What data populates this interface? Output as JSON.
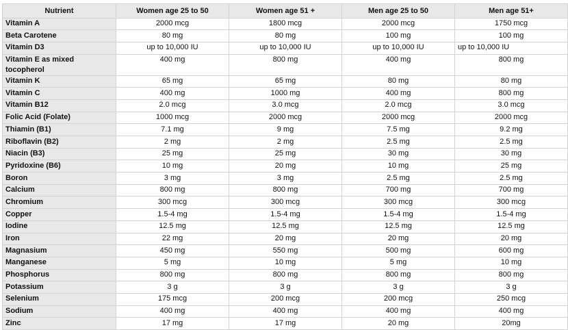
{
  "colors": {
    "header_bg": "#e8e8e8",
    "row_label_bg": "#e8e8e8",
    "border": "#d2d2d2",
    "text": "#111111"
  },
  "table": {
    "columns": [
      "Nutrient",
      "Women age 25 to 50",
      "Women age 51 +",
      "Men age 25 to 50",
      "Men age 51+"
    ],
    "rows": [
      {
        "nutrient": "Vitamin A",
        "values": [
          "2000 mcg",
          "1800 mcg",
          "2000 mcg",
          "1750 mcg"
        ]
      },
      {
        "nutrient": "Beta Carotene",
        "values": [
          "80 mg",
          "80 mg",
          "100 mg",
          "100 mg"
        ]
      },
      {
        "nutrient": "Vitamin D3",
        "values": [
          "up to 10,000 IU",
          "up to 10,000 IU",
          "up to 10,000 IU",
          "up to 10,000 IU"
        ]
      },
      {
        "nutrient": "Vitamin E as mixed tocopherol",
        "values": [
          "400 mg",
          "800 mg",
          "400 mg",
          "800 mg"
        ]
      },
      {
        "nutrient": "Vitamin K",
        "values": [
          "65 mg",
          "65 mg",
          "80 mg",
          "80 mg"
        ]
      },
      {
        "nutrient": "Vitamin C",
        "values": [
          "400 mg",
          "1000 mg",
          "400 mg",
          "800 mg"
        ]
      },
      {
        "nutrient": "Vitamin B12",
        "values": [
          "2.0 mcg",
          "3.0 mcg",
          "2.0 mcg",
          "3.0 mcg"
        ]
      },
      {
        "nutrient": "Folic Acid (Folate)",
        "values": [
          "1000 mcg",
          "2000 mcg",
          "2000 mcg",
          "2000 mcg"
        ]
      },
      {
        "nutrient": "Thiamin (B1)",
        "values": [
          "7.1 mg",
          "9 mg",
          "7.5 mg",
          "9.2 mg"
        ]
      },
      {
        "nutrient": "Riboflavin (B2)",
        "values": [
          "2 mg",
          "2 mg",
          "2.5 mg",
          "2.5 mg"
        ]
      },
      {
        "nutrient": "Niacin (B3)",
        "values": [
          "25 mg",
          "25 mg",
          "30 mg",
          "30 mg"
        ]
      },
      {
        "nutrient": "Pyridoxine (B6)",
        "values": [
          "10 mg",
          "20 mg",
          "10 mg",
          "25 mg"
        ]
      },
      {
        "nutrient": "Boron",
        "values": [
          "3 mg",
          "3 mg",
          "2.5 mg",
          "2.5 mg"
        ]
      },
      {
        "nutrient": "Calcium",
        "values": [
          "800 mg",
          "800 mg",
          "700 mg",
          "700 mg"
        ]
      },
      {
        "nutrient": "Chromium",
        "values": [
          "300 mcg",
          "300 mcg",
          "300 mcg",
          "300 mcg"
        ]
      },
      {
        "nutrient": "Copper",
        "values": [
          "1.5-4 mg",
          "1.5-4 mg",
          "1.5-4 mg",
          "1.5-4 mg"
        ]
      },
      {
        "nutrient": "Iodine",
        "values": [
          "12.5 mg",
          "12.5 mg",
          "12.5 mg",
          "12.5 mg"
        ]
      },
      {
        "nutrient": "Iron",
        "values": [
          "22 mg",
          "20 mg",
          "20 mg",
          "20 mg"
        ]
      },
      {
        "nutrient": "Magnasium",
        "values": [
          "450 mg",
          "550 mg",
          "500 mg",
          "600 mg"
        ]
      },
      {
        "nutrient": "Manganese",
        "values": [
          "5 mg",
          "10 mg",
          "5 mg",
          "10 mg"
        ]
      },
      {
        "nutrient": "Phosphorus",
        "values": [
          "800 mg",
          "800 mg",
          "800 mg",
          "800 mg"
        ]
      },
      {
        "nutrient": "Potassium",
        "values": [
          "3 g",
          "3 g",
          "3 g",
          "3 g"
        ]
      },
      {
        "nutrient": "Selenium",
        "values": [
          "175 mcg",
          "200 mcg",
          "200 mcg",
          "250 mcg"
        ]
      },
      {
        "nutrient": "Sodium",
        "values": [
          "400 mg",
          "400 mg",
          "400 mg",
          "400 mg"
        ]
      },
      {
        "nutrient": "Zinc",
        "values": [
          "17 mg",
          "17 mg",
          "20 mg",
          "20mg"
        ]
      }
    ],
    "left_aligned_cells": [
      {
        "row": 2,
        "col": 3
      }
    ]
  }
}
